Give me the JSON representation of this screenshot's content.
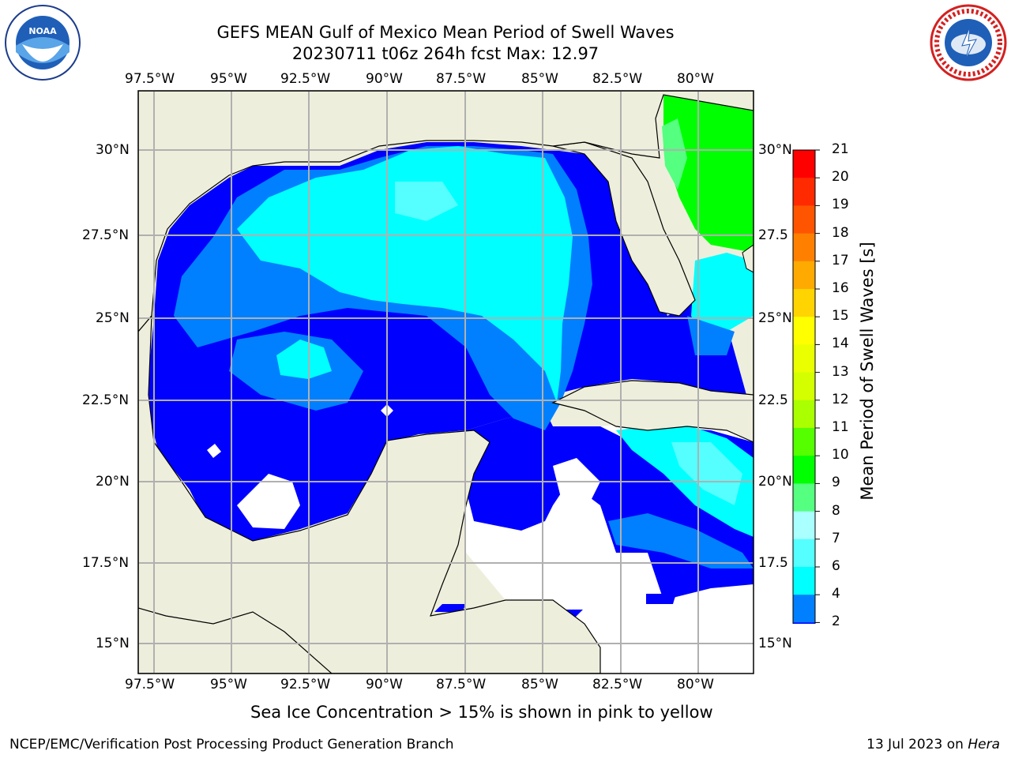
{
  "title_line1": "GEFS MEAN Gulf of Mexico Mean Period of Swell Waves",
  "title_line2": "20230711 t06z 264h fcst   Max: 12.97",
  "lon_labels": [
    "97.5°W",
    "95°W",
    "92.5°W",
    "90°W",
    "87.5°W",
    "85°W",
    "82.5°W",
    "80°W"
  ],
  "lat_labels_left": [
    "30°N",
    "27.5°N",
    "25°N",
    "22.5°N",
    "20°N",
    "17.5°N",
    "15°N"
  ],
  "lat_labels_right": [
    "30°N",
    "27.5",
    "25°N",
    "22.5",
    "20°N",
    "17.5",
    "15°N"
  ],
  "colorbar": {
    "label": "Mean Period of Swell Waves [s]",
    "ticks": [
      "21",
      "20",
      "19",
      "18",
      "17",
      "16",
      "15",
      "14",
      "13",
      "12",
      "11",
      "10",
      "9",
      "8",
      "7",
      "6",
      "4",
      "2"
    ],
    "colors": [
      "#ff0000",
      "#ff2a00",
      "#ff5500",
      "#ff8000",
      "#ffaa00",
      "#ffd400",
      "#ffff00",
      "#eaff00",
      "#d4ff00",
      "#aaff00",
      "#55ff00",
      "#00ff00",
      "#55ff80",
      "#aaffff",
      "#55ffff",
      "#00ffff",
      "#0080ff",
      "#0000ff"
    ]
  },
  "sea_ice_note": "Sea Ice Concentration > 15% is shown in pink to yellow",
  "footer_left": "NCEP/EMC/Verification Post Processing Product Generation Branch",
  "footer_date": "13 Jul 2023 on ",
  "footer_host": "Hera",
  "colors": {
    "land": "#eeeedc",
    "grid": "#b0b0b0",
    "ocean_low": "#0000ff",
    "ocean_mid": "#0080ff",
    "ocean_hi": "#00ffff"
  }
}
